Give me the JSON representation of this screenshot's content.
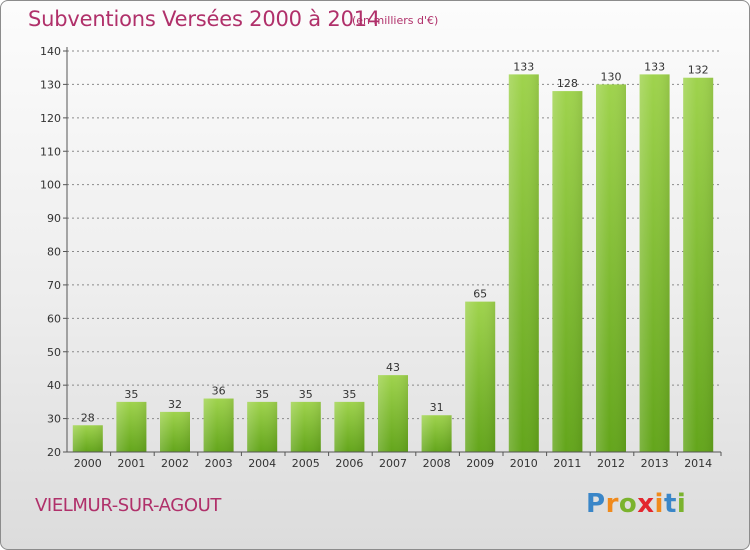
{
  "header": {
    "title": "Subventions Versées 2000 à 2014",
    "unit": "(en milliers d'€)"
  },
  "footer": {
    "commune": "VIELMUR-SUR-AGOUT",
    "brand_letters": [
      {
        "ch": "P",
        "color": "#3a86c8"
      },
      {
        "ch": "r",
        "color": "#f08a1c"
      },
      {
        "ch": "o",
        "color": "#7bb32e"
      },
      {
        "ch": "x",
        "color": "#e3262e"
      },
      {
        "ch": "i",
        "color": "#f08a1c"
      },
      {
        "ch": "t",
        "color": "#3a86c8"
      },
      {
        "ch": "i",
        "color": "#7bb32e"
      }
    ]
  },
  "colors": {
    "title": "#b0306a",
    "bar_light": "#9fd34d",
    "bar_dark": "#63a51b",
    "grid": "#888888"
  },
  "chart_data": {
    "type": "bar",
    "title": "Subventions Versées 2000 à 2014",
    "subtitle": "(en milliers d'€)",
    "xlabel": "",
    "ylabel": "",
    "categories": [
      "2000",
      "2001",
      "2002",
      "2003",
      "2004",
      "2005",
      "2006",
      "2007",
      "2008",
      "2009",
      "2010",
      "2011",
      "2012",
      "2013",
      "2014"
    ],
    "values": [
      28,
      35,
      32,
      36,
      35,
      35,
      35,
      43,
      31,
      65,
      133,
      128,
      130,
      133,
      132
    ],
    "ylim": [
      20,
      140
    ],
    "yticks": [
      20,
      30,
      40,
      50,
      60,
      70,
      80,
      90,
      100,
      110,
      120,
      130,
      140
    ],
    "grid": "dashed-horizontal",
    "legend": "none"
  }
}
